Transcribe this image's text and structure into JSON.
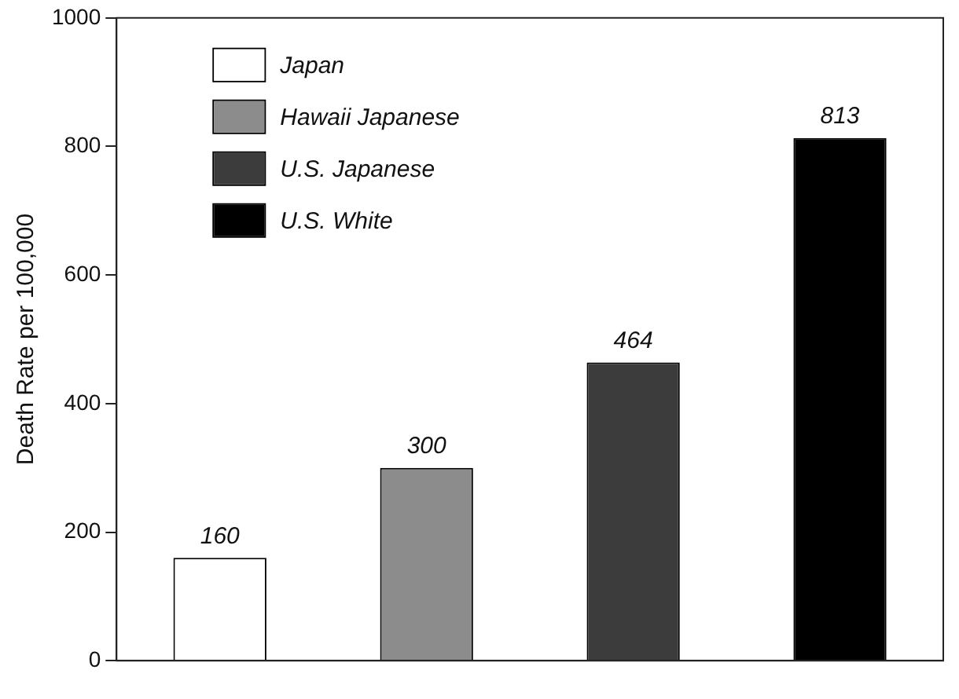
{
  "chart_data": {
    "type": "bar",
    "ylabel": "Death Rate per 100,000",
    "categories": [
      null,
      null,
      null,
      null
    ],
    "series": [
      {
        "name": "Japan",
        "color": "#ffffff",
        "values": [
          160,
          null,
          null,
          null
        ]
      },
      {
        "name": "Hawaii Japanese",
        "color": "#8c8c8c",
        "values": [
          null,
          300,
          null,
          null
        ]
      },
      {
        "name": "U.S. Japanese",
        "color": "#3c3c3c",
        "values": [
          null,
          null,
          464,
          null
        ]
      },
      {
        "name": "U.S. White",
        "color": "#000000",
        "values": [
          null,
          null,
          null,
          813
        ]
      }
    ],
    "ylim": [
      0,
      1000
    ],
    "yticks": [
      0,
      200,
      400,
      600,
      800,
      1000
    ],
    "grid": false,
    "legend": "top left",
    "data_labels": true
  }
}
